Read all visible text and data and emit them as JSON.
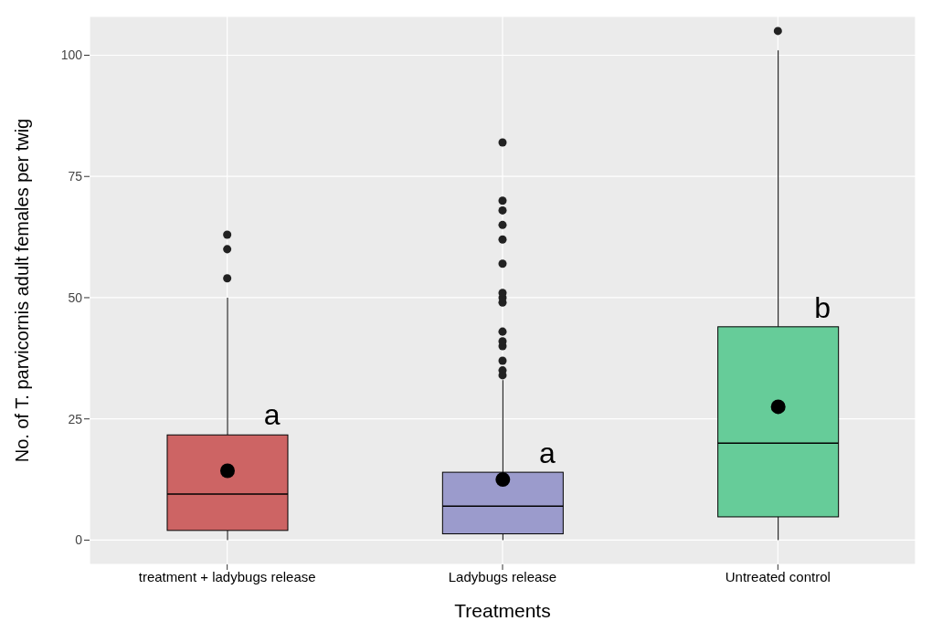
{
  "chart_data": {
    "type": "box",
    "xlabel": "Treatments",
    "ylabel": "No. of T. parvicornis adult females per twig",
    "categories": [
      "treatment + ladybugs release",
      "Ladybugs release",
      "Untreated control"
    ],
    "colors": [
      "#cd6464",
      "#9b9bcc",
      "#66cc99"
    ],
    "boxes": [
      {
        "low": 0,
        "q1": 2,
        "median": 9.5,
        "q3": 21.7,
        "high": 50,
        "mean": 14.3,
        "outliers": [
          54,
          60,
          63
        ]
      },
      {
        "low": 0,
        "q1": 1.3,
        "median": 7,
        "q3": 14,
        "high": 33,
        "mean": 12.5,
        "outliers": [
          34,
          35,
          37,
          40,
          41,
          43,
          49,
          50,
          51,
          57,
          62,
          65,
          68,
          70,
          82
        ]
      },
      {
        "low": 0,
        "q1": 4.8,
        "median": 20,
        "q3": 44,
        "high": 101,
        "mean": 27.5,
        "outliers": [
          105
        ]
      }
    ],
    "ylim": [
      -5,
      108
    ],
    "yticks": [
      0,
      25,
      50,
      75,
      100
    ],
    "grid": true,
    "legend": false,
    "annotations": [
      {
        "text": "a",
        "x": "treatment + ladybugs release",
        "y": 26
      },
      {
        "text": "a",
        "x": "Ladybugs release",
        "y": 18
      },
      {
        "text": "b",
        "x": "Untreated control",
        "y": 48
      }
    ]
  }
}
